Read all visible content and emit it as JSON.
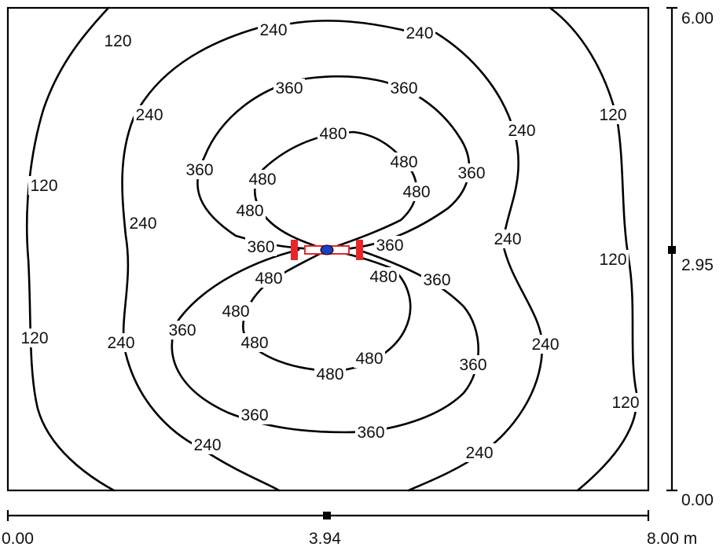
{
  "chart_data": {
    "type": "isolux_contour",
    "contour_levels": [
      120,
      240,
      360,
      480
    ],
    "x_axis": {
      "ticks": [
        "0.00",
        "3.94",
        "8.00 m"
      ],
      "range": [
        0,
        8.0
      ],
      "marker": 3.94
    },
    "y_axis": {
      "ticks": [
        "0.00",
        "2.95",
        "6.00"
      ],
      "range": [
        0,
        6.0
      ],
      "marker": 2.95
    },
    "luminaire": {
      "x": 3.94,
      "y": 2.95
    },
    "labels": [
      {
        "text": "120"
      },
      {
        "text": "240"
      },
      {
        "text": "240"
      },
      {
        "text": "360"
      },
      {
        "text": "360"
      },
      {
        "text": "240"
      },
      {
        "text": "480"
      },
      {
        "text": "120"
      },
      {
        "text": "240"
      },
      {
        "text": "360"
      },
      {
        "text": "480"
      },
      {
        "text": "360"
      },
      {
        "text": "120"
      },
      {
        "text": "480"
      },
      {
        "text": "480"
      },
      {
        "text": "480"
      },
      {
        "text": "240"
      },
      {
        "text": "240"
      },
      {
        "text": "360"
      },
      {
        "text": "360"
      },
      {
        "text": "120"
      },
      {
        "text": "480"
      },
      {
        "text": "480"
      },
      {
        "text": "360"
      },
      {
        "text": "480"
      },
      {
        "text": "360"
      },
      {
        "text": "120"
      },
      {
        "text": "240"
      },
      {
        "text": "480"
      },
      {
        "text": "240"
      },
      {
        "text": "480"
      },
      {
        "text": "360"
      },
      {
        "text": "480"
      },
      {
        "text": "120"
      },
      {
        "text": "360"
      },
      {
        "text": "360"
      },
      {
        "text": "240"
      },
      {
        "text": "240"
      }
    ]
  },
  "colors": {
    "luminaire": "#e8262a",
    "center": "#1f3fbf",
    "lines": "#000000"
  }
}
